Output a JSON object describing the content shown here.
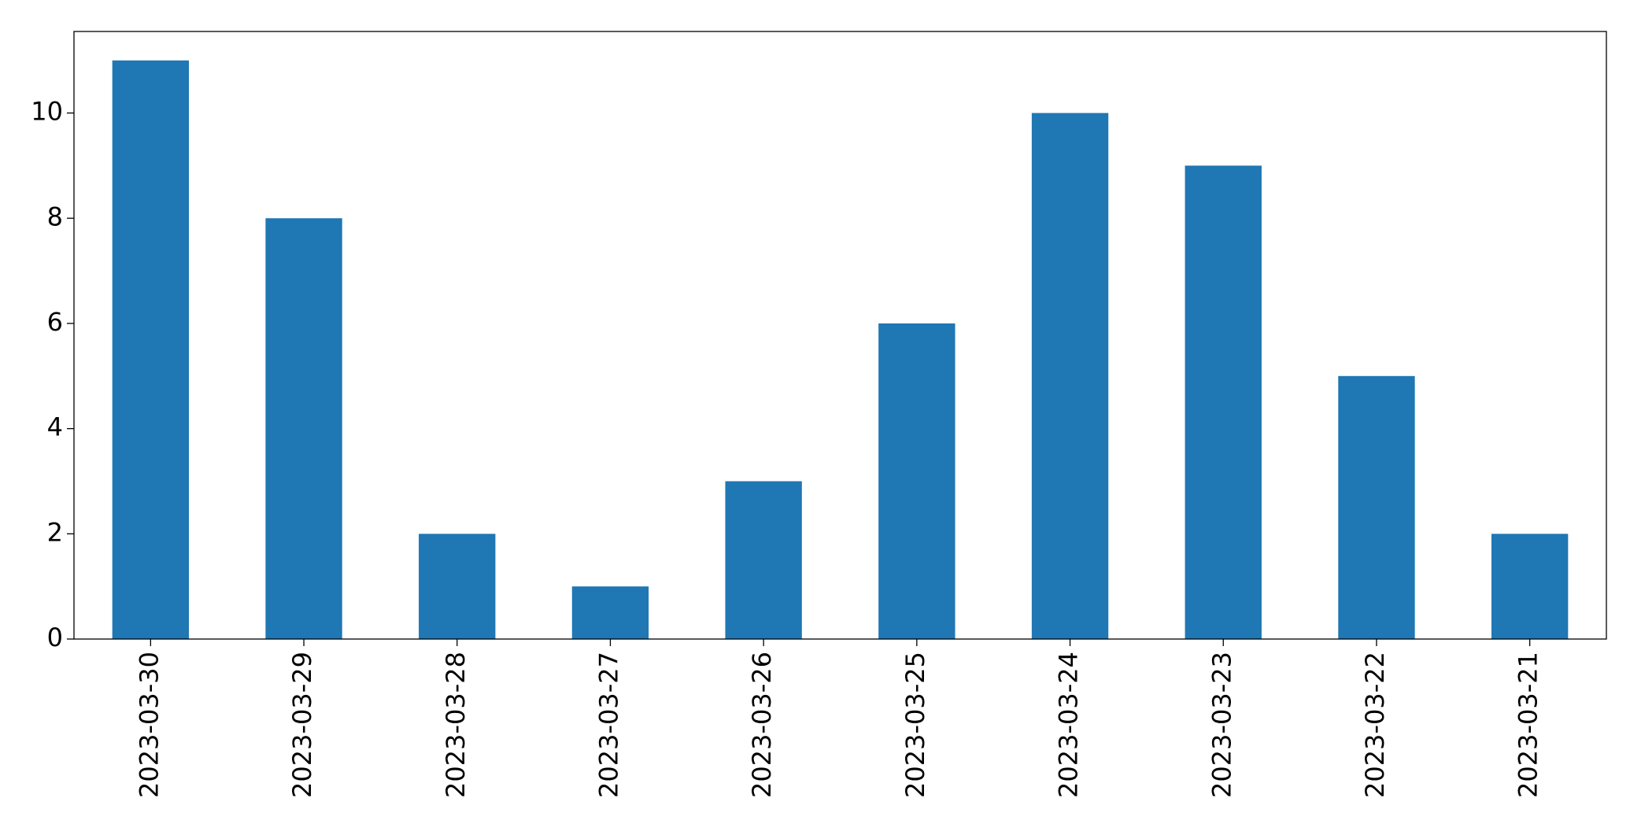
{
  "chart_data": {
    "type": "bar",
    "categories": [
      "2023-03-30",
      "2023-03-29",
      "2023-03-28",
      "2023-03-27",
      "2023-03-26",
      "2023-03-25",
      "2023-03-24",
      "2023-03-23",
      "2023-03-22",
      "2023-03-21"
    ],
    "values": [
      11,
      8,
      2,
      1,
      3,
      6,
      10,
      9,
      5,
      2
    ],
    "color": "#1f77b4",
    "ylim": [
      0,
      11.55
    ],
    "yticks": [
      0,
      2,
      4,
      6,
      8,
      10
    ],
    "grid": false
  }
}
